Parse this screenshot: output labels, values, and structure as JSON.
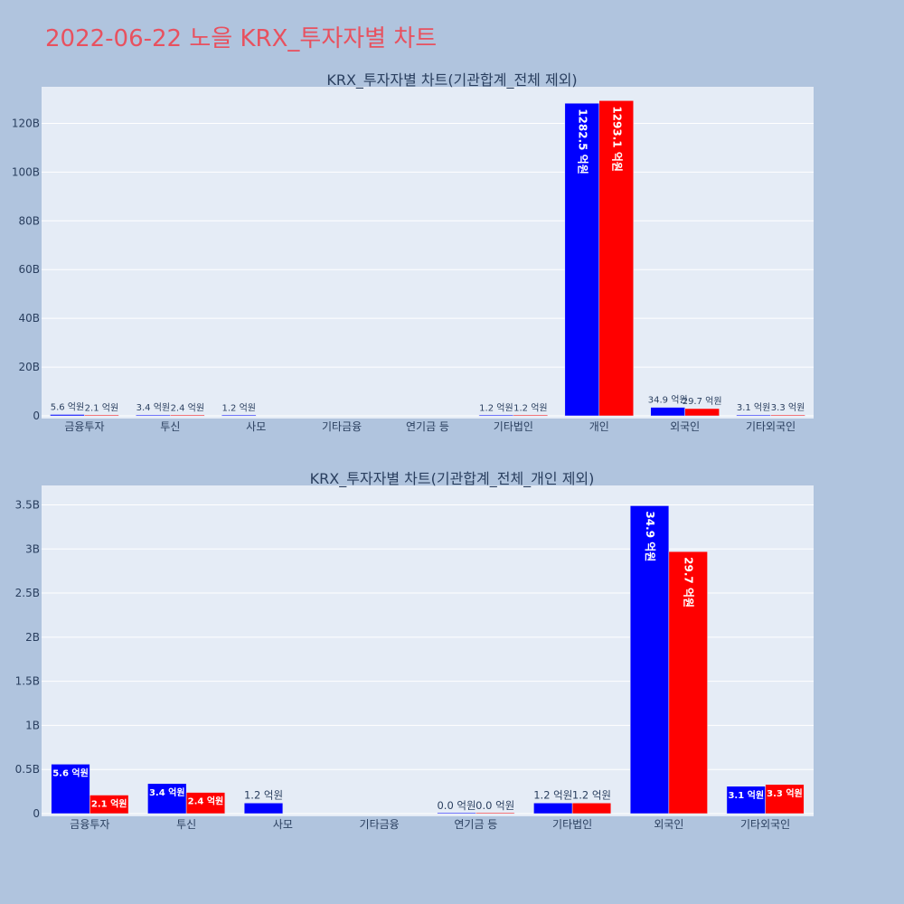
{
  "title": "2022-06-22 노을 KRX_투자자별 차트",
  "colors": {
    "background": "#b0c4de",
    "plot_background": "#e5ecf6",
    "title": "#e8515f",
    "series_1": "#0000ff",
    "series_2": "#ff0000",
    "text": "#2a3f5f"
  },
  "chart_data": [
    {
      "type": "bar",
      "title": "KRX_투자자별 차트(기관합계_전체 제외)",
      "categories": [
        "금융투자",
        "투신",
        "사모",
        "기타금융",
        "연기금 등",
        "기타법인",
        "개인",
        "외국인",
        "기타외국인"
      ],
      "series": [
        {
          "color": "#0000ff",
          "values": [
            560000000,
            340000000,
            120000000,
            null,
            null,
            120000000,
            128250000000,
            3490000000,
            310000000
          ],
          "labels": [
            "5.6 억원",
            "3.4 억원",
            "1.2 억원",
            "",
            "",
            "1.2 억원",
            "1282.5 억원",
            "34.9 억원",
            "3.1 억원"
          ]
        },
        {
          "color": "#ff0000",
          "values": [
            210000000,
            240000000,
            null,
            null,
            null,
            120000000,
            129310000000,
            2970000000,
            330000000
          ],
          "labels": [
            "2.1 억원",
            "2.4 억원",
            "",
            "",
            "",
            "1.2 억원",
            "1293.1 억원",
            "29.7 억원",
            "3.3 억원"
          ]
        }
      ],
      "ylim": [
        0,
        135000000000
      ],
      "yticks": [
        0,
        20000000000,
        40000000000,
        60000000000,
        80000000000,
        100000000000,
        120000000000
      ],
      "ytick_labels": [
        "0",
        "20B",
        "40B",
        "60B",
        "80B",
        "100B",
        "120B"
      ],
      "grid": true
    },
    {
      "type": "bar",
      "title": "KRX_투자자별 차트(기관합계_전체_개인 제외)",
      "categories": [
        "금융투자",
        "투신",
        "사모",
        "기타금융",
        "연기금 등",
        "기타법인",
        "외국인",
        "기타외국인"
      ],
      "series": [
        {
          "color": "#0000ff",
          "values": [
            560000000,
            340000000,
            120000000,
            null,
            0,
            120000000,
            3490000000,
            310000000
          ],
          "labels": [
            "5.6 억원",
            "3.4 억원",
            "1.2 억원",
            "",
            "0.0 억원",
            "1.2 억원",
            "34.9 억원",
            "3.1 억원"
          ]
        },
        {
          "color": "#ff0000",
          "values": [
            210000000,
            240000000,
            null,
            null,
            0,
            120000000,
            2970000000,
            330000000
          ],
          "labels": [
            "2.1 억원",
            "2.4 억원",
            "",
            "",
            "0.0 억원",
            "1.2 억원",
            "29.7 억원",
            "3.3 억원"
          ]
        }
      ],
      "ylim": [
        0,
        3720000000
      ],
      "yticks": [
        0,
        500000000,
        1000000000,
        1500000000,
        2000000000,
        2500000000,
        3000000000,
        3500000000
      ],
      "ytick_labels": [
        "0",
        "0.5B",
        "1B",
        "1.5B",
        "2B",
        "2.5B",
        "3B",
        "3.5B"
      ],
      "grid": true
    }
  ]
}
